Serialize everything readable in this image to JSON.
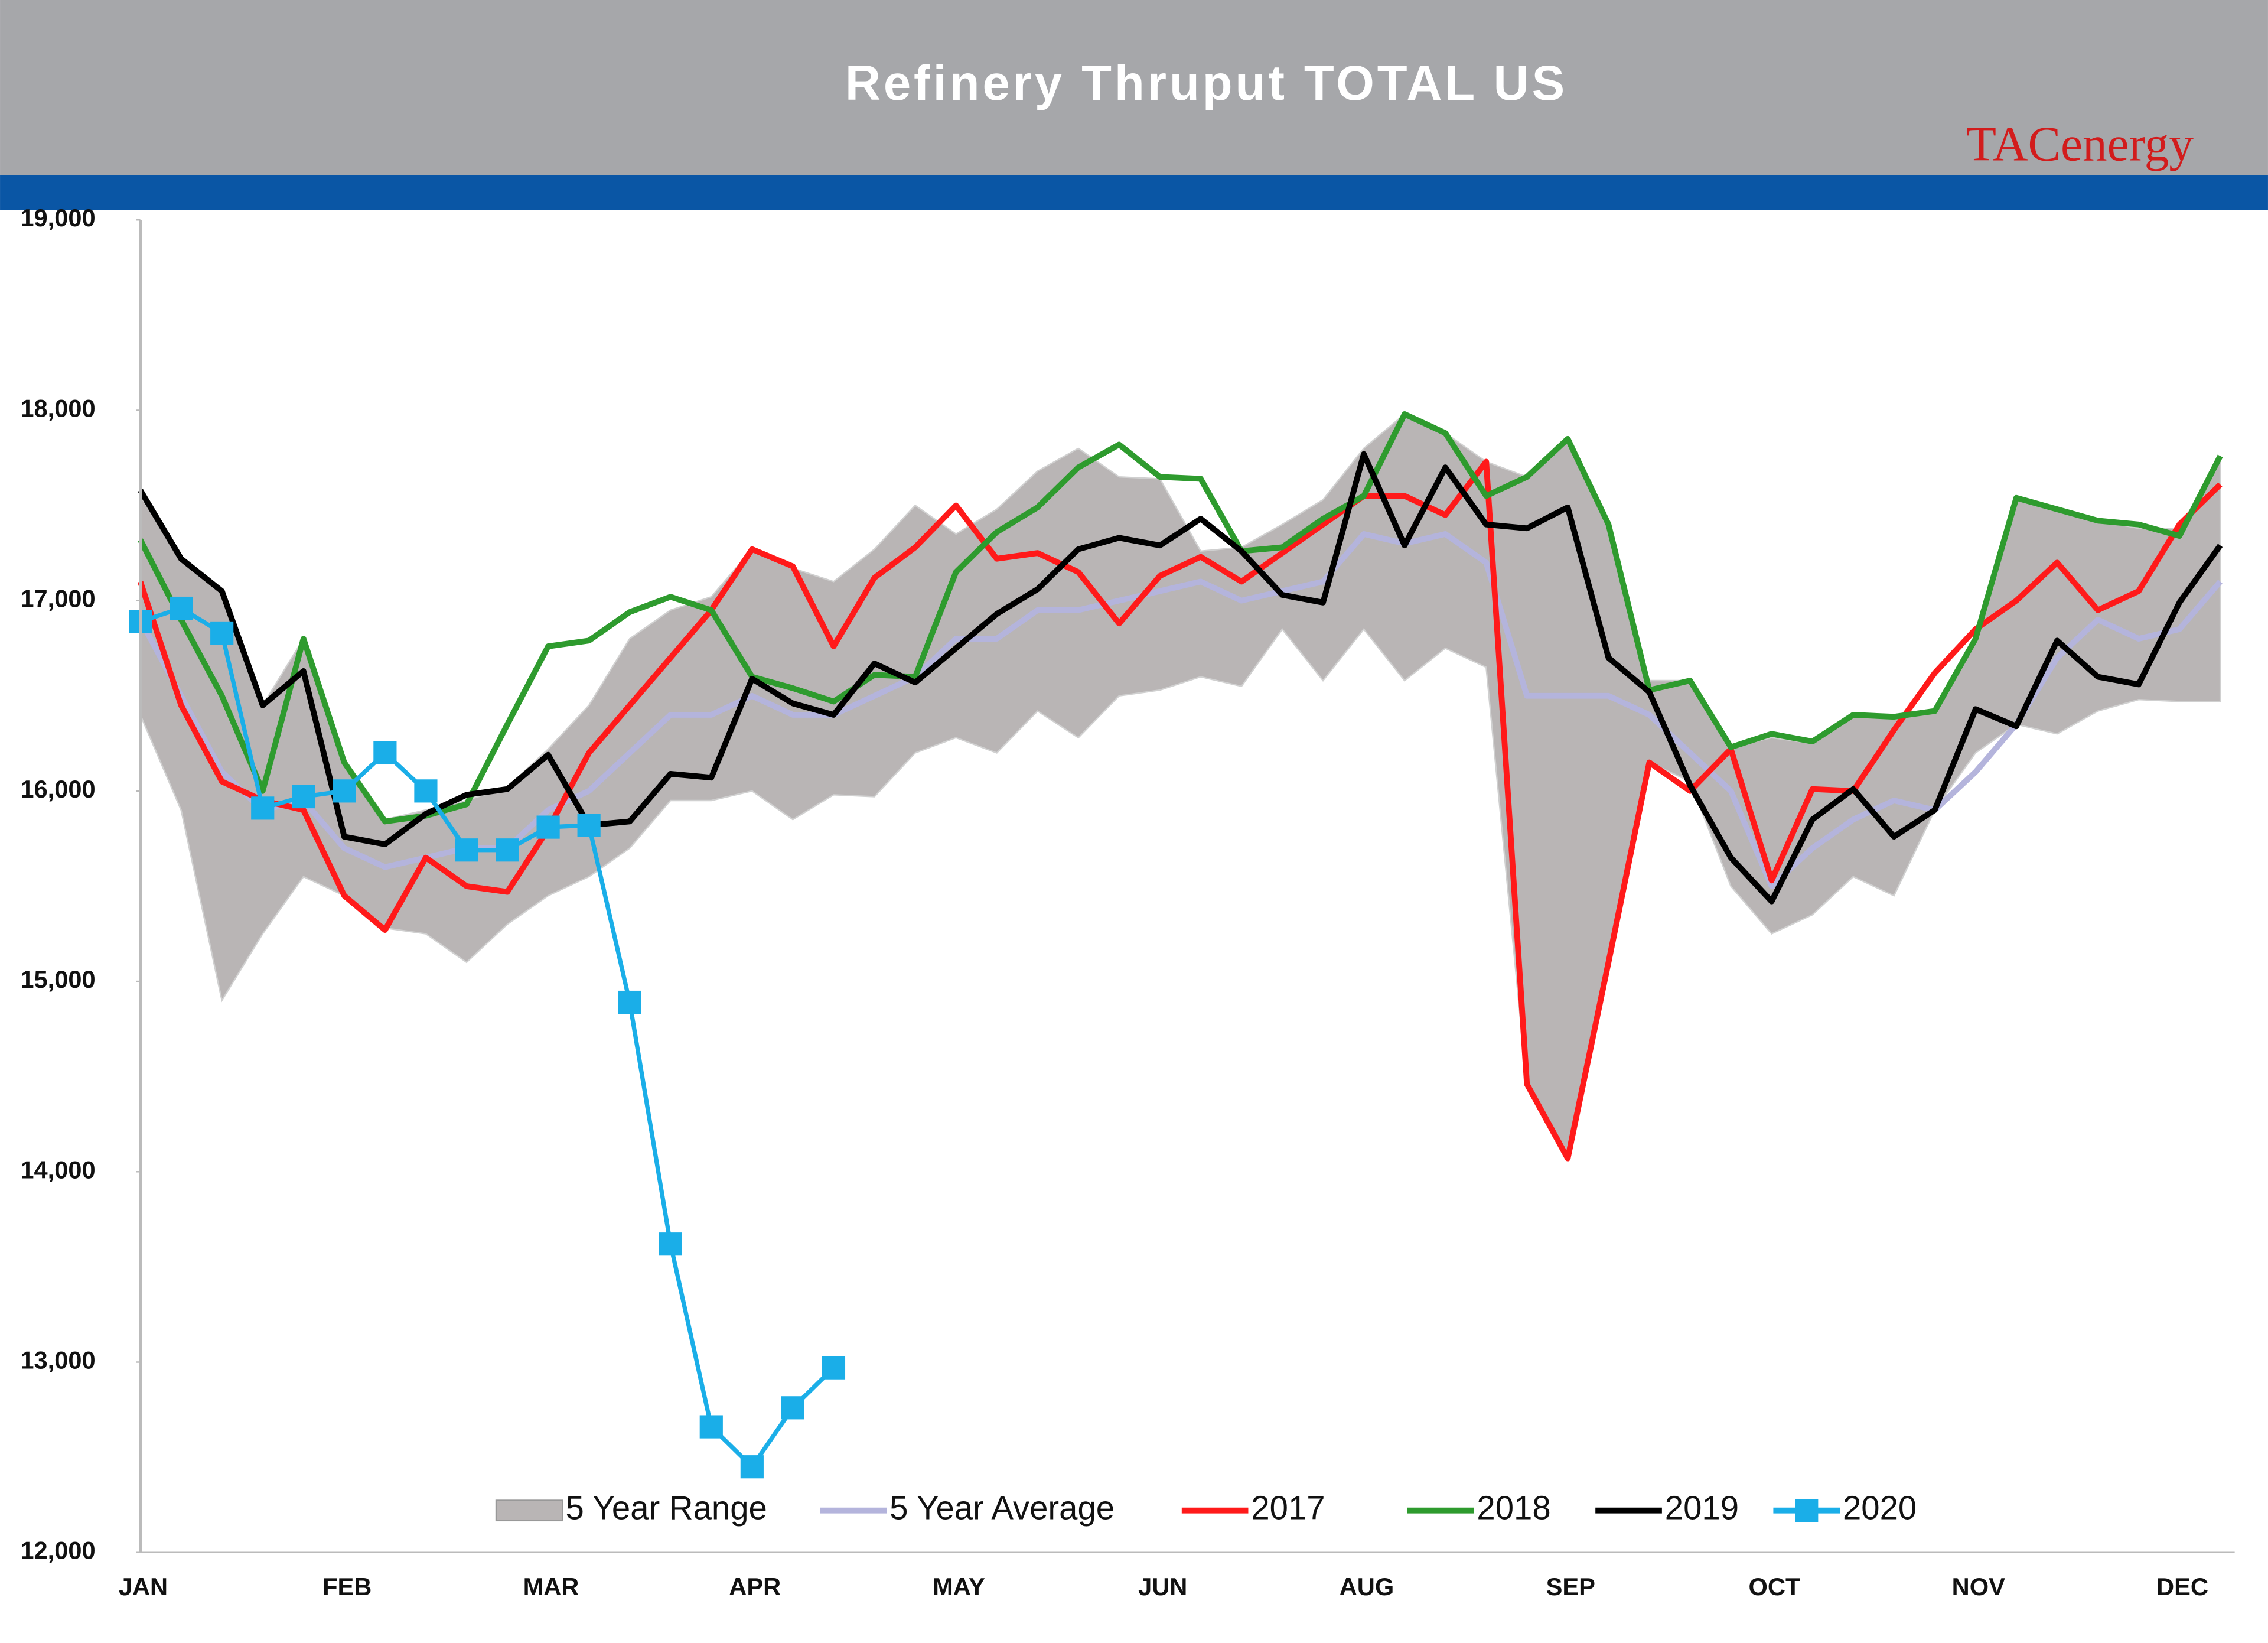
{
  "chart_data": {
    "type": "line",
    "title": "Refinery Thruput TOTAL US",
    "logo": "TACenergy",
    "categories": [
      "JAN",
      null,
      null,
      null,
      null,
      "FEB",
      null,
      null,
      null,
      null,
      "MAR",
      null,
      null,
      null,
      null,
      "APR",
      null,
      null,
      null,
      null,
      "MAY",
      null,
      null,
      null,
      null,
      "JUN",
      null,
      null,
      null,
      null,
      "AUG",
      null,
      null,
      null,
      null,
      "SEP",
      null,
      null,
      null,
      null,
      "OCT",
      null,
      null,
      null,
      null,
      "NOV",
      null,
      null,
      null,
      null,
      "DEC",
      null
    ],
    "ylim": [
      12000,
      19000
    ],
    "yticks": [
      {
        "value": 12000,
        "label": "12,000"
      },
      {
        "value": 13000,
        "label": "13,000"
      },
      {
        "value": 14000,
        "label": "14,000"
      },
      {
        "value": 15000,
        "label": "15,000"
      },
      {
        "value": 16000,
        "label": "16,000"
      },
      {
        "value": 17000,
        "label": "17,000"
      },
      {
        "value": 18000,
        "label": "18,000"
      },
      {
        "value": 19000,
        "label": "19,000"
      }
    ],
    "series": [
      {
        "name": "5 Year Range",
        "kind": "range",
        "color": "#b9b5b5",
        "low": [
          16400,
          15900,
          14900,
          15250,
          15550,
          15450,
          15280,
          15250,
          15100,
          15300,
          15450,
          15550,
          15700,
          15950,
          15950,
          16000,
          15850,
          15980,
          15970,
          16200,
          16280,
          16200,
          16420,
          16280,
          16500,
          16530,
          16600,
          16550,
          16850,
          16580,
          16850,
          16580,
          16750,
          16650,
          14450,
          14100,
          15050,
          16150,
          16050,
          15500,
          15250,
          15350,
          15550,
          15450,
          15900,
          16200,
          16350,
          16300,
          16420,
          16480,
          16470,
          16470
        ],
        "high": [
          17550,
          17220,
          17050,
          16450,
          16800,
          16150,
          15850,
          15900,
          15950,
          16020,
          16220,
          16450,
          16800,
          16950,
          17020,
          17270,
          17170,
          17100,
          17270,
          17500,
          17350,
          17480,
          17680,
          17800,
          17650,
          17640,
          17260,
          17280,
          17400,
          17530,
          17800,
          17980,
          17880,
          17730,
          17650,
          17850,
          17400,
          16580,
          16580,
          16230,
          16280,
          16250,
          16400,
          16400,
          16420,
          16800,
          17550,
          17480,
          17420,
          17380,
          17380,
          17750
        ]
      },
      {
        "name": "5 Year Average",
        "color": "#b4b4dc",
        "values": [
          16900,
          16500,
          16100,
          15900,
          15950,
          15700,
          15600,
          15650,
          15700,
          15700,
          15900,
          16000,
          16200,
          16400,
          16400,
          16500,
          16400,
          16400,
          16500,
          16600,
          16800,
          16800,
          16950,
          16950,
          17000,
          17050,
          17100,
          17000,
          17050,
          17100,
          17350,
          17300,
          17350,
          17200,
          16500,
          16500,
          16500,
          16400,
          16200,
          16000,
          15500,
          15700,
          15850,
          15950,
          15900,
          16100,
          16350,
          16700,
          16900,
          16800,
          16850,
          17100
        ]
      },
      {
        "name": "2017",
        "color": "#ff1a1a",
        "values": [
          17100,
          16450,
          16050,
          15950,
          15900,
          15450,
          15270,
          15650,
          15500,
          15470,
          15800,
          16200,
          16450,
          16700,
          16950,
          17270,
          17180,
          16760,
          17120,
          17280,
          17500,
          17220,
          17250,
          17150,
          16880,
          17130,
          17230,
          17100,
          17250,
          17400,
          17550,
          17550,
          17450,
          17730,
          14460,
          14070,
          15100,
          16150,
          16000,
          16220,
          15530,
          16010,
          16000,
          16320,
          16620,
          16850,
          17000,
          17200,
          16950,
          17050,
          17400,
          17610
        ]
      },
      {
        "name": "2018",
        "color": "#2e9b2e",
        "values": [
          17320,
          16900,
          16500,
          16000,
          16800,
          16150,
          15840,
          15870,
          15930,
          16350,
          16760,
          16790,
          16940,
          17020,
          16950,
          16600,
          16540,
          16470,
          16610,
          16600,
          17150,
          17360,
          17490,
          17700,
          17820,
          17650,
          17640,
          17260,
          17280,
          17430,
          17550,
          17980,
          17880,
          17550,
          17650,
          17850,
          17400,
          16530,
          16580,
          16230,
          16300,
          16260,
          16400,
          16390,
          16420,
          16800,
          17540,
          17480,
          17420,
          17400,
          17340,
          17760
        ]
      },
      {
        "name": "2019",
        "color": "#000000",
        "values": [
          17580,
          17220,
          17050,
          16450,
          16630,
          15760,
          15720,
          15880,
          15980,
          16010,
          16190,
          15820,
          15840,
          16090,
          16070,
          16590,
          16460,
          16400,
          16670,
          16570,
          16750,
          16930,
          17060,
          17270,
          17330,
          17290,
          17430,
          17260,
          17030,
          16990,
          17770,
          17290,
          17700,
          17400,
          17380,
          17490,
          16700,
          16520,
          16030,
          15650,
          15420,
          15850,
          16010,
          15760,
          15900,
          16430,
          16340,
          16790,
          16600,
          16560,
          16990,
          17290
        ]
      },
      {
        "name": "2020",
        "color": "#1aaee8",
        "marker": "square",
        "values": [
          16890,
          16960,
          16830,
          15910,
          15970,
          16000,
          16200,
          16000,
          15690,
          15690,
          15810,
          15820,
          14890,
          13620,
          12660,
          12450,
          12760,
          12970,
          null,
          null,
          null,
          null,
          null,
          null,
          null,
          null,
          null,
          null,
          null,
          null,
          null,
          null,
          null,
          null,
          null,
          null,
          null,
          null,
          null,
          null,
          null,
          null,
          null,
          null,
          null,
          null,
          null,
          null,
          null,
          null,
          null,
          null
        ]
      }
    ]
  }
}
